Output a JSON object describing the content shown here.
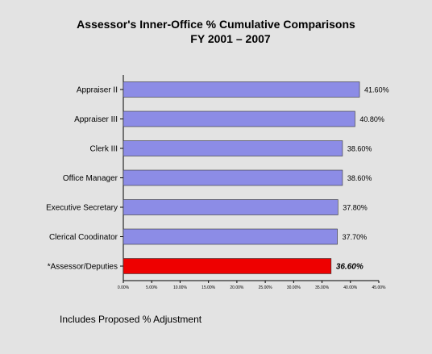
{
  "chart_data": {
    "type": "bar",
    "orientation": "horizontal",
    "title": "Assessor's Inner-Office % Cumulative Comparisons",
    "subtitle": "FY 2001 – 2007",
    "categories": [
      "Appraiser II",
      "Appraiser III",
      "Clerk III",
      "Office Manager",
      "Executive Secretary",
      "Clerical Coodinator",
      "*Assessor/Deputies"
    ],
    "values": [
      41.6,
      40.8,
      38.6,
      38.6,
      37.8,
      37.7,
      36.6
    ],
    "value_labels": [
      "41.60%",
      "40.80%",
      "38.60%",
      "38.60%",
      "37.80%",
      "37.70%",
      "36.60%"
    ],
    "xlim": [
      0,
      45
    ],
    "x_ticks": [
      0,
      5,
      10,
      15,
      20,
      25,
      30,
      35,
      40,
      45
    ],
    "x_tick_labels": [
      "0.00%",
      "5.00%",
      "10.00%",
      "15.00%",
      "20.00%",
      "25.00%",
      "30.00%",
      "35.00%",
      "40.00%",
      "45.00%"
    ],
    "grid": false,
    "colors": {
      "default_bar": "#8c8ce6",
      "highlight_bar": "#ee0000",
      "bar_edge": "#333333",
      "background": "#e3e3e3"
    },
    "highlight_index": 6
  },
  "footnote": "Includes Proposed % Adjustment"
}
